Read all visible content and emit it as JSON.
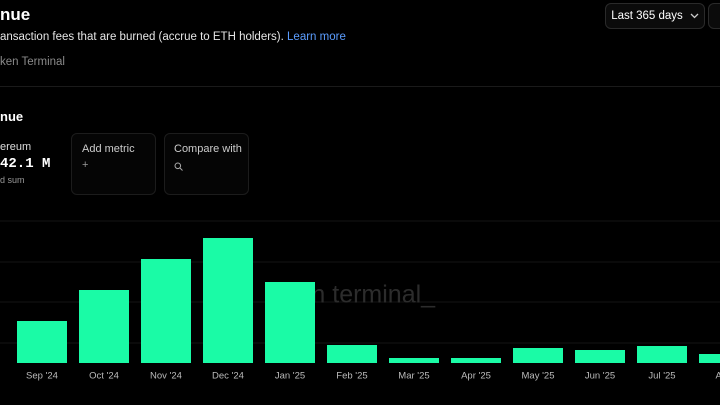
{
  "header": {
    "title": "nue",
    "description": "ansaction fees that are burned (accrue to ETH holders).",
    "learn_more": "Learn more",
    "source": "ken Terminal",
    "range_button": "Last 365 days"
  },
  "panel": {
    "title": "nue",
    "metric_name": "ereum",
    "metric_value": "42.1 M",
    "metric_note": "d sum",
    "add_metric": "Add metric",
    "add_icon": "+",
    "compare_with": "Compare with",
    "watermark": "ken terminal_"
  },
  "chart_data": {
    "type": "bar",
    "categories": [
      "Sep '24",
      "Oct '24",
      "Nov '24",
      "Dec '24",
      "Jan '25",
      "Feb '25",
      "Mar '25",
      "Apr '25",
      "May '25",
      "Jun '25",
      "Jul '25",
      "Aug"
    ],
    "values": [
      42,
      73,
      104,
      125,
      81,
      18,
      5,
      5,
      15,
      13,
      17,
      9
    ],
    "color": "#1afba6",
    "ylim": [
      0,
      140
    ]
  }
}
